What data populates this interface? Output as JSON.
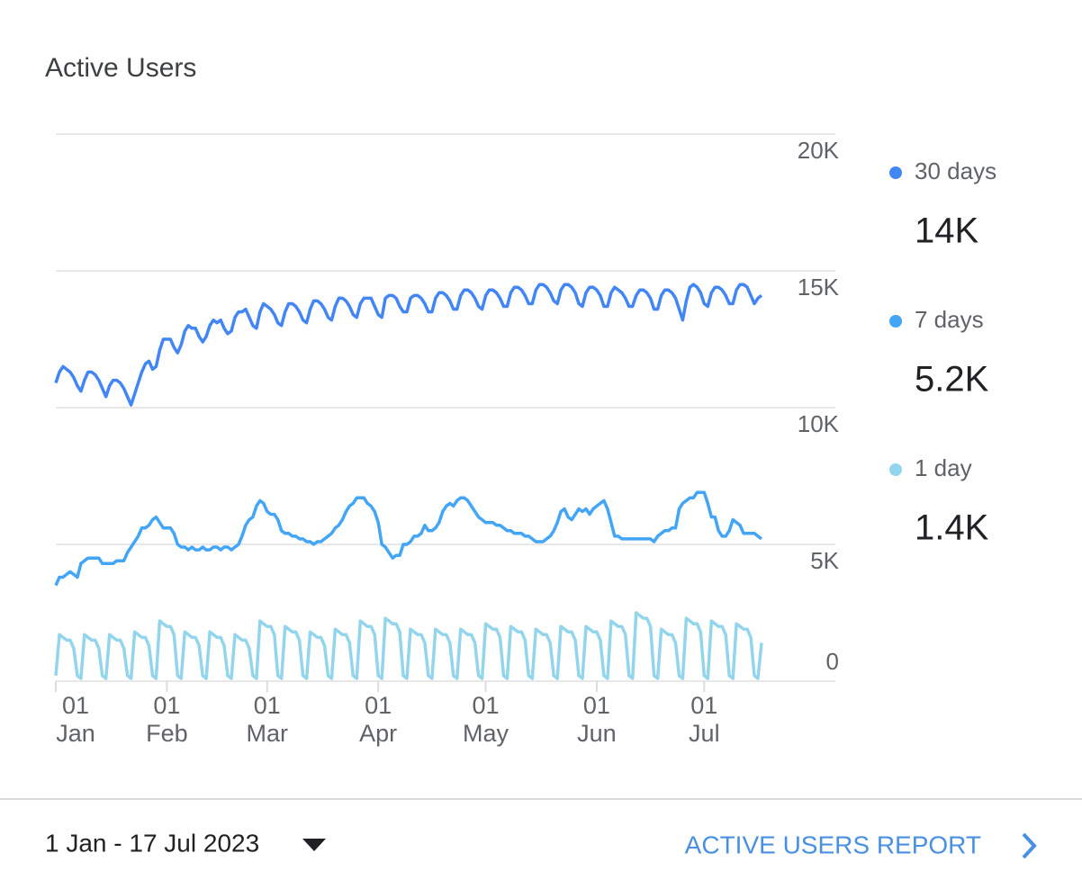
{
  "title": "Active Users",
  "chart_data": {
    "type": "line",
    "categories": [
      "01 Jan",
      null,
      null,
      null,
      null,
      null,
      null,
      null,
      null,
      null,
      null,
      null,
      null,
      null,
      null,
      null,
      null,
      null,
      null,
      null,
      null,
      null,
      null,
      null,
      null,
      null,
      null,
      null,
      null,
      null,
      null,
      "01 Feb",
      null,
      null,
      null,
      null,
      null,
      null,
      null,
      null,
      null,
      null,
      null,
      null,
      null,
      null,
      null,
      null,
      null,
      null,
      null,
      null,
      null,
      null,
      null,
      null,
      null,
      null,
      null,
      "01 Mar",
      null,
      null,
      null,
      null,
      null,
      null,
      null,
      null,
      null,
      null,
      null,
      null,
      null,
      null,
      null,
      null,
      null,
      null,
      null,
      null,
      null,
      null,
      null,
      null,
      null,
      null,
      null,
      null,
      null,
      null,
      "01 Apr",
      null,
      null,
      null,
      null,
      null,
      null,
      null,
      null,
      null,
      null,
      null,
      null,
      null,
      null,
      null,
      null,
      null,
      null,
      null,
      null,
      null,
      null,
      null,
      null,
      null,
      null,
      null,
      null,
      null,
      "01 May",
      null,
      null,
      null,
      null,
      null,
      null,
      null,
      null,
      null,
      null,
      null,
      null,
      null,
      null,
      null,
      null,
      null,
      null,
      null,
      null,
      null,
      null,
      null,
      null,
      null,
      null,
      null,
      null,
      null,
      null,
      "01 Jun",
      null,
      null,
      null,
      null,
      null,
      null,
      null,
      null,
      null,
      null,
      null,
      null,
      null,
      null,
      null,
      null,
      null,
      null,
      null,
      null,
      null,
      null,
      null,
      null,
      null,
      null,
      null,
      null,
      null,
      "01 Jul",
      null,
      null,
      null,
      null,
      null,
      null,
      null,
      null,
      null,
      null,
      null,
      null,
      null,
      null,
      null,
      null
    ],
    "series": [
      {
        "name": "30 days",
        "color": "#4285f4",
        "summary": {
          "value": 14000,
          "label": "14K"
        },
        "values": [
          10900,
          11300,
          11500,
          11400,
          11300,
          11100,
          10800,
          10600,
          11000,
          11300,
          11300,
          11200,
          11000,
          10700,
          10400,
          10800,
          11000,
          11000,
          10900,
          10700,
          10400,
          10100,
          10500,
          10900,
          11300,
          11600,
          11700,
          11400,
          11500,
          12100,
          12500,
          12500,
          12500,
          12200,
          12000,
          12300,
          12800,
          13000,
          12900,
          12900,
          12600,
          12400,
          12600,
          13000,
          13200,
          13100,
          13200,
          12900,
          12700,
          12800,
          13300,
          13500,
          13500,
          13600,
          13300,
          13000,
          12900,
          13500,
          13800,
          13700,
          13600,
          13400,
          13100,
          13000,
          13500,
          13800,
          13800,
          13700,
          13500,
          13200,
          13100,
          13600,
          13900,
          13900,
          13800,
          13600,
          13300,
          13200,
          13700,
          14000,
          14000,
          13900,
          13700,
          13400,
          13300,
          13800,
          14000,
          14000,
          14000,
          13700,
          13400,
          13300,
          14000,
          14100,
          14100,
          14000,
          13700,
          13500,
          13500,
          14000,
          14100,
          14100,
          14000,
          13800,
          13500,
          13500,
          14000,
          14200,
          14200,
          14100,
          13900,
          13600,
          13600,
          14100,
          14300,
          14300,
          14200,
          14000,
          13700,
          13600,
          14100,
          14300,
          14300,
          14200,
          14000,
          13700,
          13700,
          14200,
          14400,
          14400,
          14300,
          14100,
          13800,
          13800,
          14300,
          14500,
          14500,
          14400,
          14200,
          13900,
          13800,
          14300,
          14500,
          14500,
          14400,
          14200,
          13800,
          13700,
          14200,
          14400,
          14400,
          14300,
          14100,
          13700,
          13700,
          14200,
          14400,
          14300,
          14200,
          14000,
          13700,
          13700,
          14100,
          14300,
          14300,
          14200,
          14000,
          13600,
          13600,
          14100,
          14300,
          14300,
          14200,
          14000,
          13600,
          13200,
          13900,
          14400,
          14500,
          14400,
          14200,
          13800,
          13700,
          14200,
          14400,
          14400,
          14300,
          14100,
          13800,
          13800,
          14300,
          14500,
          14500,
          14400,
          14100,
          13800,
          14000,
          14100
        ]
      },
      {
        "name": "7 days",
        "color": "#42a5f5",
        "summary": {
          "value": 5200,
          "label": "5.2K"
        },
        "values": [
          3500,
          3800,
          3800,
          3900,
          4000,
          3900,
          3800,
          4300,
          4400,
          4500,
          4500,
          4500,
          4500,
          4300,
          4300,
          4300,
          4300,
          4400,
          4400,
          4400,
          4700,
          4900,
          5100,
          5300,
          5600,
          5600,
          5700,
          5900,
          6000,
          5800,
          5600,
          5600,
          5600,
          5400,
          5000,
          4900,
          4900,
          4800,
          4900,
          4800,
          4800,
          4900,
          4800,
          4800,
          4900,
          4900,
          4800,
          4900,
          4900,
          4800,
          4900,
          5000,
          5300,
          5700,
          5900,
          6000,
          6400,
          6600,
          6500,
          6200,
          6100,
          6100,
          5900,
          5500,
          5400,
          5400,
          5300,
          5300,
          5200,
          5200,
          5100,
          5100,
          5000,
          5100,
          5100,
          5200,
          5300,
          5400,
          5600,
          5700,
          5900,
          6200,
          6400,
          6500,
          6700,
          6700,
          6700,
          6500,
          6400,
          6200,
          5800,
          5000,
          4900,
          4700,
          4500,
          4600,
          4600,
          5000,
          5000,
          5100,
          5300,
          5300,
          5400,
          5700,
          5500,
          5500,
          5600,
          5800,
          6200,
          6400,
          6500,
          6400,
          6600,
          6700,
          6700,
          6600,
          6400,
          6200,
          6000,
          5900,
          5800,
          5800,
          5800,
          5700,
          5700,
          5600,
          5500,
          5500,
          5400,
          5400,
          5400,
          5300,
          5300,
          5200,
          5100,
          5100,
          5100,
          5200,
          5300,
          5500,
          5800,
          6200,
          6300,
          6000,
          5900,
          6100,
          6300,
          6200,
          6300,
          6100,
          6300,
          6400,
          6500,
          6600,
          6300,
          5800,
          5300,
          5300,
          5200,
          5200,
          5200,
          5200,
          5200,
          5200,
          5200,
          5200,
          5200,
          5100,
          5300,
          5400,
          5500,
          5500,
          5600,
          5600,
          6300,
          6500,
          6600,
          6700,
          6700,
          6900,
          6900,
          6900,
          6500,
          6000,
          6000,
          5500,
          5300,
          5300,
          5500,
          5900,
          5800,
          5700,
          5400,
          5400,
          5400,
          5400,
          5300,
          5200
        ]
      },
      {
        "name": "1 day",
        "color": "#93d5ec",
        "summary": {
          "value": 1400,
          "label": "1.4K"
        },
        "values": [
          200,
          1700,
          1600,
          1500,
          1500,
          1200,
          200,
          100,
          1700,
          1600,
          1500,
          1500,
          1200,
          200,
          100,
          1700,
          1600,
          1500,
          1500,
          1200,
          200,
          100,
          1800,
          1700,
          1600,
          1600,
          1300,
          200,
          100,
          2200,
          2100,
          2000,
          2000,
          1700,
          200,
          100,
          1800,
          1700,
          1600,
          1600,
          1300,
          200,
          100,
          1800,
          1700,
          1600,
          1600,
          1300,
          200,
          100,
          1700,
          1600,
          1500,
          1500,
          1200,
          200,
          100,
          2200,
          2100,
          2000,
          2000,
          1700,
          200,
          100,
          2000,
          1900,
          1800,
          1800,
          1500,
          200,
          100,
          1800,
          1700,
          1600,
          1600,
          1300,
          200,
          100,
          1900,
          1800,
          1700,
          1700,
          1400,
          200,
          100,
          2200,
          2100,
          2000,
          2000,
          1700,
          200,
          100,
          2300,
          2200,
          2100,
          2100,
          1800,
          200,
          100,
          1900,
          1800,
          1700,
          1700,
          1400,
          200,
          100,
          1900,
          1800,
          1700,
          1700,
          1400,
          200,
          100,
          1900,
          1800,
          1700,
          1700,
          1400,
          200,
          100,
          2100,
          2000,
          1900,
          1900,
          1600,
          200,
          100,
          2000,
          1900,
          1800,
          1800,
          1500,
          200,
          100,
          1900,
          1800,
          1700,
          1700,
          1400,
          200,
          100,
          2000,
          1900,
          1800,
          1800,
          1500,
          200,
          100,
          2000,
          1900,
          1800,
          1800,
          1500,
          200,
          100,
          2200,
          2100,
          2000,
          2000,
          1700,
          200,
          100,
          2500,
          2400,
          2300,
          2300,
          2000,
          200,
          100,
          1900,
          1800,
          1700,
          1700,
          1400,
          200,
          100,
          2300,
          2200,
          2100,
          2100,
          1800,
          200,
          100,
          2200,
          2100,
          2000,
          2000,
          1700,
          200,
          100,
          2100,
          2000,
          1900,
          1900,
          1600,
          200,
          100,
          1400
        ]
      }
    ],
    "ylim": [
      0,
      20000
    ],
    "yticks": [
      0,
      {
        "value": 5000,
        "label": "5K"
      },
      {
        "value": 10000,
        "label": "10K"
      },
      {
        "value": 15000,
        "label": "15K"
      },
      {
        "value": 20000,
        "label": "20K"
      }
    ],
    "grid": true
  },
  "footer": {
    "date_range": "1 Jan - 17 Jul 2023",
    "report_link": "ACTIVE USERS REPORT"
  }
}
